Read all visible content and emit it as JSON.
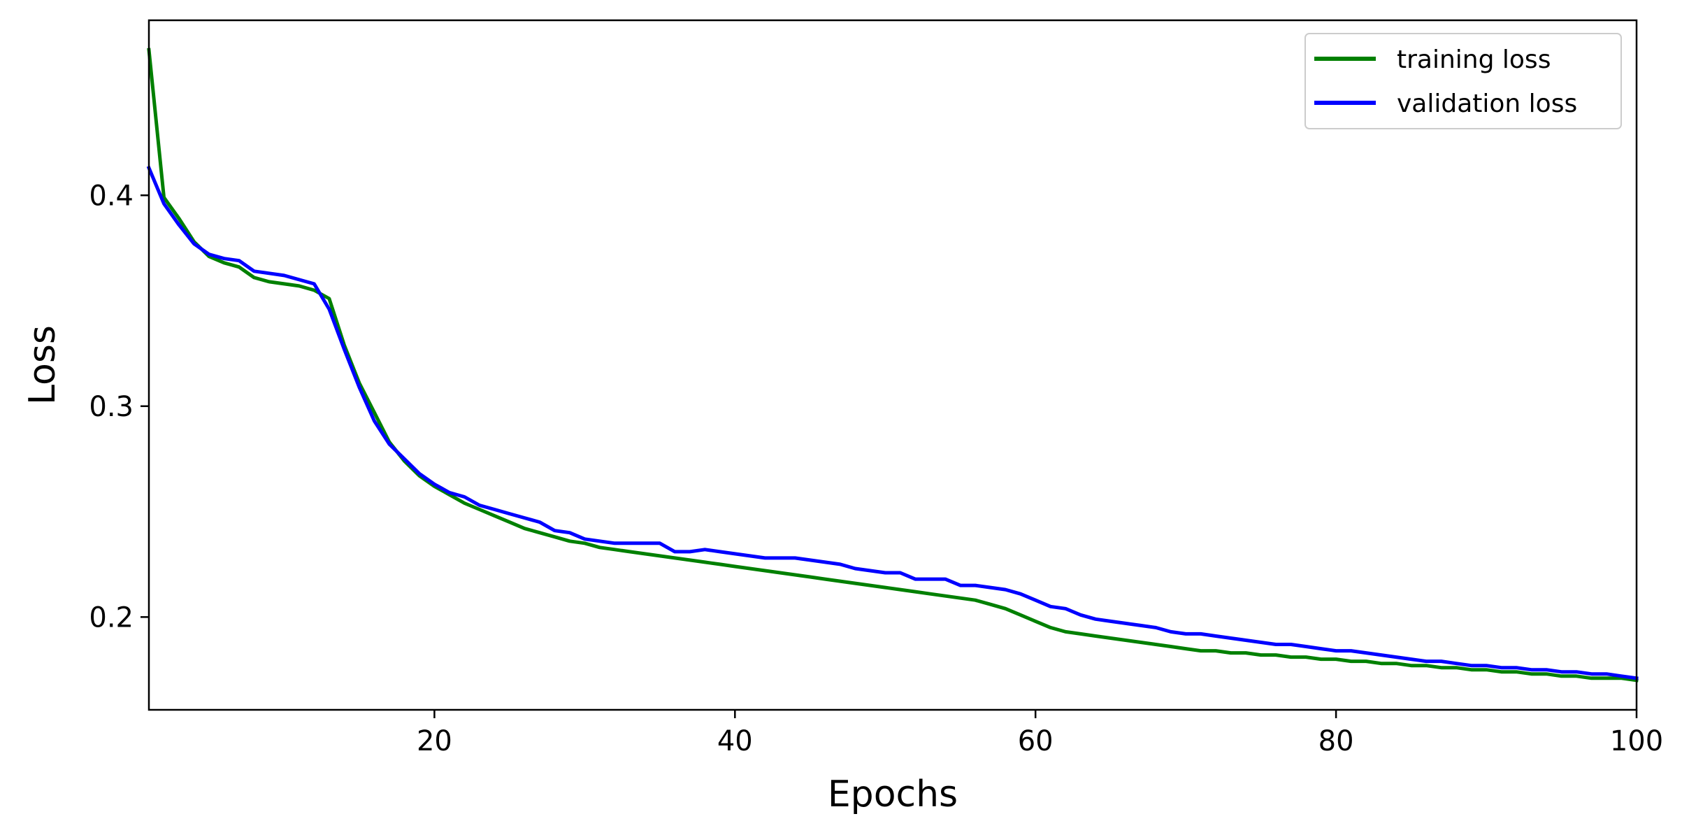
{
  "chart_data": {
    "type": "line",
    "xlabel": "Epochs",
    "ylabel": "Loss",
    "xlim": [
      1,
      100
    ],
    "ylim": [
      0.156,
      0.483
    ],
    "x_ticks": [
      20,
      40,
      60,
      80,
      100
    ],
    "x_tick_labels": [
      "20",
      "40",
      "60",
      "80",
      "100"
    ],
    "y_ticks": [
      0.2,
      0.3,
      0.4
    ],
    "y_tick_labels": [
      "0.2",
      "0.3",
      "0.4"
    ],
    "grid": false,
    "legend_position": "top-right",
    "x": [
      1,
      2,
      3,
      4,
      5,
      6,
      7,
      8,
      9,
      10,
      11,
      12,
      13,
      14,
      15,
      16,
      17,
      18,
      19,
      20,
      21,
      22,
      23,
      24,
      25,
      26,
      27,
      28,
      29,
      30,
      31,
      32,
      33,
      34,
      35,
      36,
      37,
      38,
      39,
      40,
      41,
      42,
      43,
      44,
      45,
      46,
      47,
      48,
      49,
      50,
      51,
      52,
      53,
      54,
      55,
      56,
      57,
      58,
      59,
      60,
      61,
      62,
      63,
      64,
      65,
      66,
      67,
      68,
      69,
      70,
      71,
      72,
      73,
      74,
      75,
      76,
      77,
      78,
      79,
      80,
      81,
      82,
      83,
      84,
      85,
      86,
      87,
      88,
      89,
      90,
      91,
      92,
      93,
      94,
      95,
      96,
      97,
      98,
      99,
      100
    ],
    "series": [
      {
        "name": "training loss",
        "color": "#008000",
        "values": [
          0.469,
          0.399,
          0.389,
          0.378,
          0.371,
          0.368,
          0.366,
          0.361,
          0.359,
          0.358,
          0.357,
          0.355,
          0.351,
          0.329,
          0.311,
          0.297,
          0.283,
          0.274,
          0.267,
          0.262,
          0.258,
          0.254,
          0.251,
          0.248,
          0.245,
          0.242,
          0.24,
          0.238,
          0.236,
          0.235,
          0.233,
          0.232,
          0.231,
          0.23,
          0.229,
          0.228,
          0.227,
          0.226,
          0.225,
          0.224,
          0.223,
          0.222,
          0.221,
          0.22,
          0.219,
          0.218,
          0.217,
          0.216,
          0.215,
          0.214,
          0.213,
          0.212,
          0.211,
          0.21,
          0.209,
          0.208,
          0.206,
          0.204,
          0.201,
          0.198,
          0.195,
          0.193,
          0.192,
          0.191,
          0.19,
          0.189,
          0.188,
          0.187,
          0.186,
          0.185,
          0.184,
          0.184,
          0.183,
          0.183,
          0.182,
          0.182,
          0.181,
          0.181,
          0.18,
          0.18,
          0.179,
          0.179,
          0.178,
          0.178,
          0.177,
          0.177,
          0.176,
          0.176,
          0.175,
          0.175,
          0.174,
          0.174,
          0.173,
          0.173,
          0.172,
          0.172,
          0.171,
          0.171,
          0.171,
          0.17
        ]
      },
      {
        "name": "validation loss",
        "color": "#0000ff",
        "values": [
          0.413,
          0.396,
          0.386,
          0.377,
          0.372,
          0.37,
          0.369,
          0.364,
          0.363,
          0.362,
          0.36,
          0.358,
          0.346,
          0.327,
          0.309,
          0.293,
          0.282,
          0.275,
          0.268,
          0.263,
          0.259,
          0.257,
          0.253,
          0.251,
          0.249,
          0.247,
          0.245,
          0.241,
          0.24,
          0.237,
          0.236,
          0.235,
          0.235,
          0.235,
          0.235,
          0.231,
          0.231,
          0.232,
          0.231,
          0.23,
          0.229,
          0.228,
          0.228,
          0.228,
          0.227,
          0.226,
          0.225,
          0.223,
          0.222,
          0.221,
          0.221,
          0.218,
          0.218,
          0.218,
          0.215,
          0.215,
          0.214,
          0.213,
          0.211,
          0.208,
          0.205,
          0.204,
          0.201,
          0.199,
          0.198,
          0.197,
          0.196,
          0.195,
          0.193,
          0.192,
          0.192,
          0.191,
          0.19,
          0.189,
          0.188,
          0.187,
          0.187,
          0.186,
          0.185,
          0.184,
          0.184,
          0.183,
          0.182,
          0.181,
          0.18,
          0.179,
          0.179,
          0.178,
          0.177,
          0.177,
          0.176,
          0.176,
          0.175,
          0.175,
          0.174,
          0.174,
          0.173,
          0.173,
          0.172,
          0.171
        ]
      }
    ]
  }
}
